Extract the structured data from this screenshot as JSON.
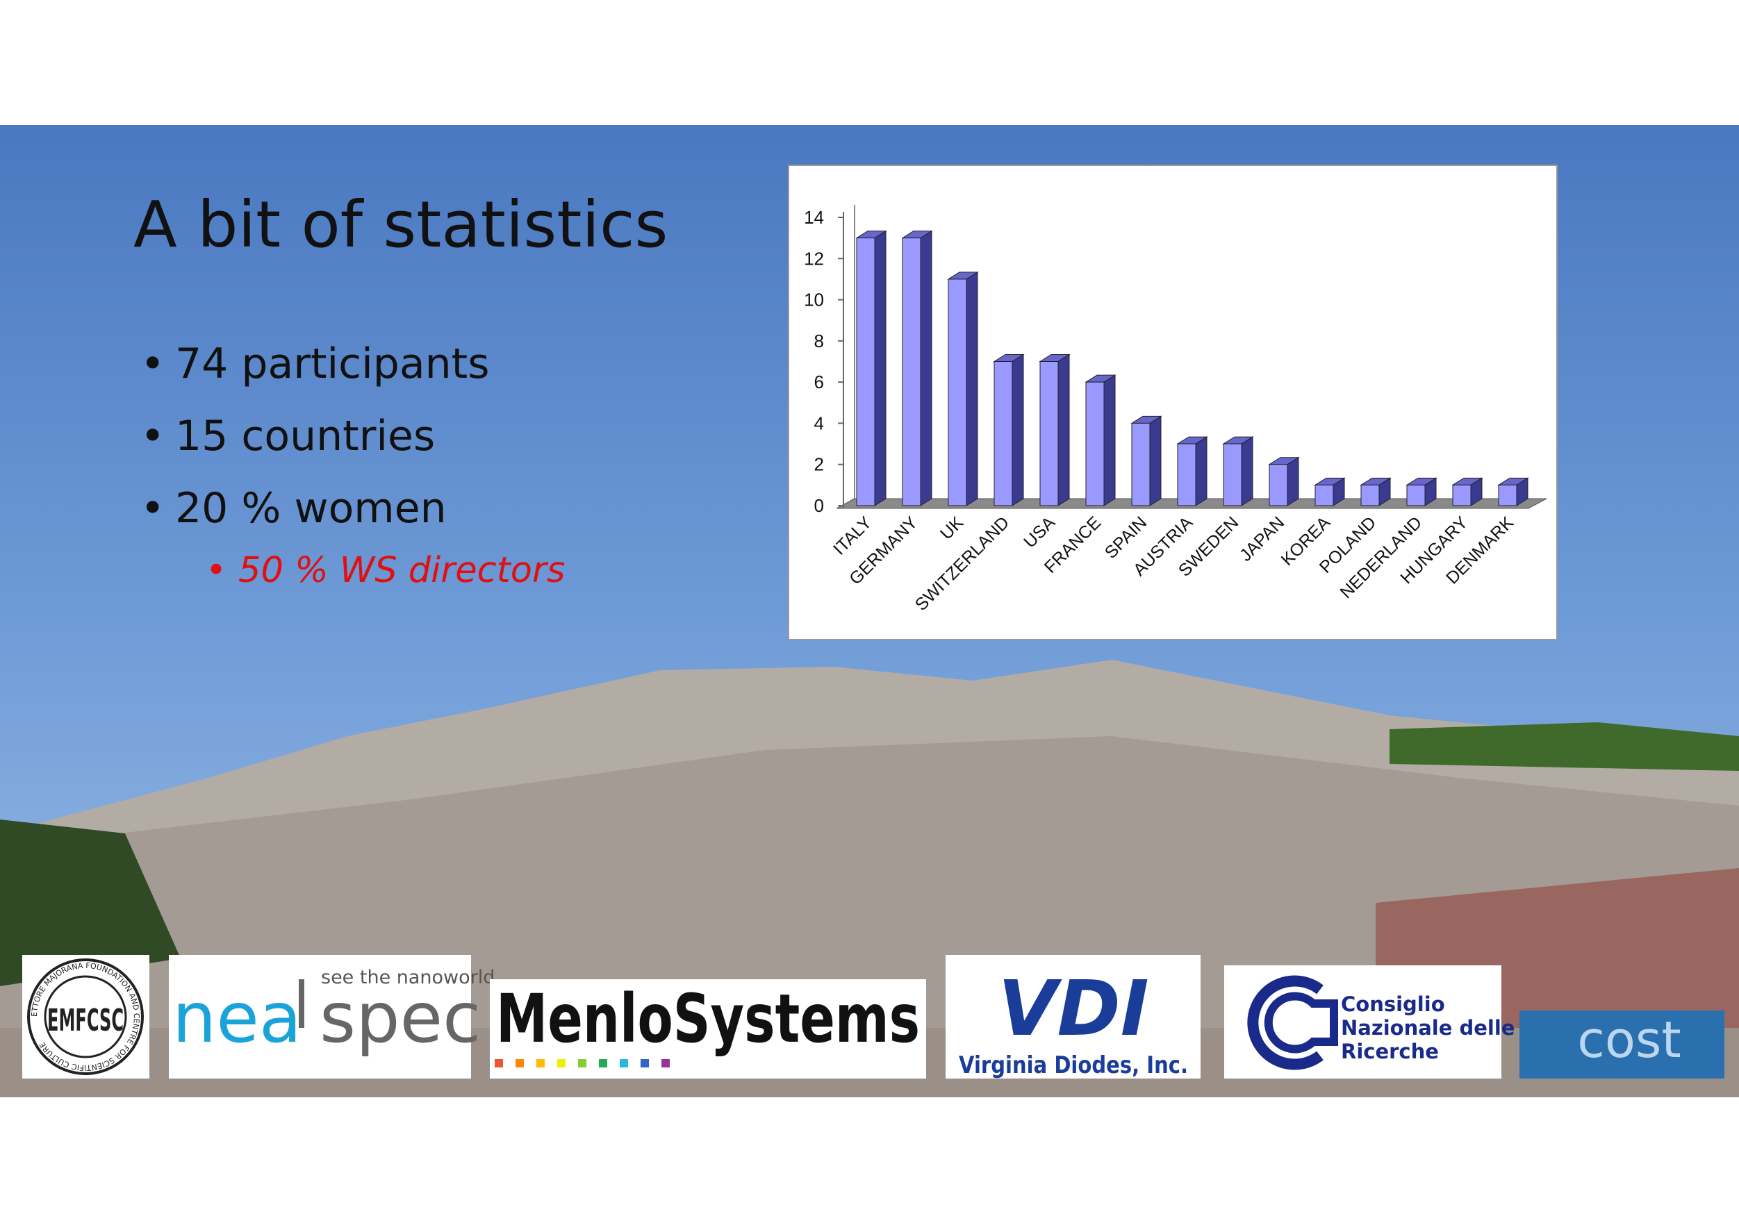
{
  "slide": {
    "title": "A bit of statistics",
    "bullets": [
      "74 participants",
      "15 countries",
      "20 % women"
    ],
    "sub_bullet": "50 % WS directors",
    "logos": {
      "emfcsc_ring": "ETTORE MAJORANA FOUNDATION AND CENTRE FOR SCIENTIFIC CULTURE",
      "emfcsc": "EMFCSC",
      "neaspec_tagline": "see the nanoworld",
      "neaspec_left": "nea",
      "neaspec_right": "spec",
      "menlo": "MenloSystems",
      "vdi": "VDI",
      "vdi_name": "Virginia Diodes, Inc.",
      "cnr": [
        "Consiglio",
        "Nazionale delle",
        "Ricerche"
      ],
      "cost": "cost"
    }
  },
  "chart_data": {
    "type": "bar",
    "categories": [
      "ITALY",
      "GERMANY",
      "UK",
      "SWITZERLAND",
      "USA",
      "FRANCE",
      "SPAIN",
      "AUSTRIA",
      "SWEDEN",
      "JAPAN",
      "KOREA",
      "POLAND",
      "NEDERLAND",
      "HUNGARY",
      "DENMARK"
    ],
    "values": [
      13,
      13,
      11,
      7,
      7,
      6,
      4,
      3,
      3,
      2,
      1,
      1,
      1,
      1,
      1
    ],
    "color": "#9999ff",
    "ylim": [
      0,
      14
    ],
    "yticks": [
      0,
      2,
      4,
      6,
      8,
      10,
      12,
      14
    ],
    "grid": false
  }
}
